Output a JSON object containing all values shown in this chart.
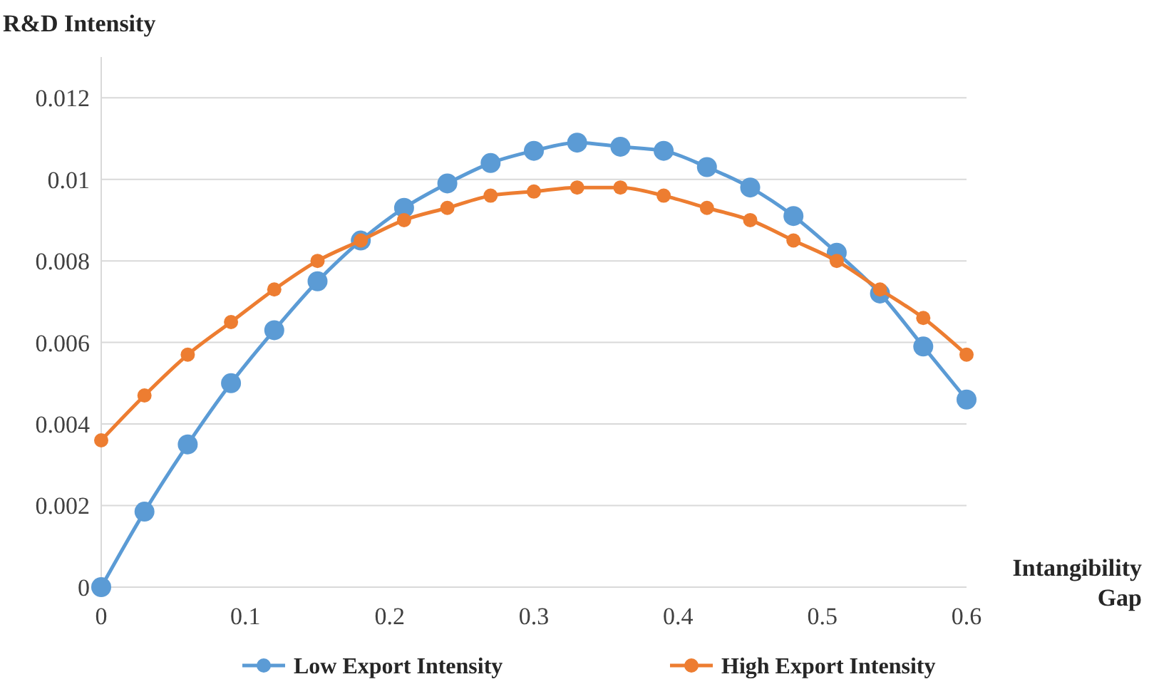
{
  "chart_data": {
    "type": "line",
    "xlabel": "Intangibility Gap",
    "ylabel": "R&D Intensity",
    "x": [
      0,
      0.03,
      0.06,
      0.09,
      0.12,
      0.15,
      0.18,
      0.21,
      0.24,
      0.27,
      0.3,
      0.33,
      0.36,
      0.39,
      0.42,
      0.45,
      0.48,
      0.51,
      0.54,
      0.57,
      0.6
    ],
    "series": [
      {
        "name": "Low Export Intensity",
        "color": "#5b9bd5",
        "values": [
          0,
          0.00185,
          0.0035,
          0.005,
          0.0063,
          0.0075,
          0.0085,
          0.0093,
          0.0099,
          0.0104,
          0.0107,
          0.0109,
          0.0108,
          0.0107,
          0.0103,
          0.0098,
          0.0091,
          0.0082,
          0.0072,
          0.0059,
          0.0046
        ]
      },
      {
        "name": "High Export Intensity",
        "color": "#ed7d31",
        "values": [
          0.0036,
          0.0047,
          0.0057,
          0.0065,
          0.0073,
          0.008,
          0.0085,
          0.009,
          0.0093,
          0.0096,
          0.0097,
          0.0098,
          0.0098,
          0.0096,
          0.0093,
          0.009,
          0.0085,
          0.008,
          0.0073,
          0.0066,
          0.0057
        ]
      }
    ],
    "xlim": [
      0,
      0.6
    ],
    "xticks": [
      0,
      0.1,
      0.2,
      0.3,
      0.4,
      0.5,
      0.6
    ],
    "ylim": [
      0,
      0.013
    ],
    "yticks": [
      0,
      0.002,
      0.004,
      0.006,
      0.008,
      0.01,
      0.012
    ],
    "grid": "y",
    "legend": "bottom",
    "marker": "circle",
    "line_style": "solid"
  }
}
